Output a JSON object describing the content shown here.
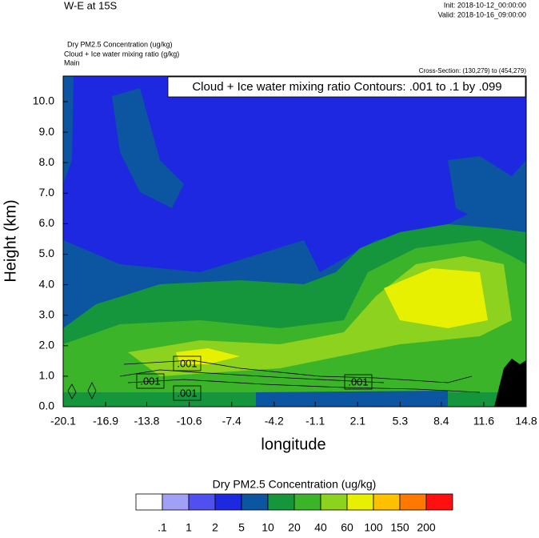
{
  "chart_data": {
    "type": "contour",
    "title": "W-E at 15S",
    "init": "Init: 2018-10-12_00:00:00",
    "valid": "Valid: 2018-10-16_09:00:00",
    "field_labels": [
      "Dry PM2.5 Concentration   (ug/kg)",
      "Cloud + Ice water mixing ratio   (g/kg)",
      "Main"
    ],
    "cross_section": "Cross-Section: (130,279) to (454,279)",
    "contour_info": "Cloud + Ice water mixing ratio Contours: .001 to .1 by .099",
    "contour_labels": [
      ".001",
      ".001",
      ".001",
      ".001"
    ],
    "xlabel": "longitude",
    "ylabel": "Height (km)",
    "xlim": [
      -20.1,
      14.8
    ],
    "xticks": [
      -20.1,
      -16.9,
      -13.8,
      -10.6,
      -7.4,
      -4.2,
      -1.1,
      2.1,
      5.3,
      8.4,
      11.6,
      14.8
    ],
    "ylim": [
      0,
      10.84
    ],
    "yticks": [
      {
        "value": 0,
        "label": "0.0"
      },
      {
        "value": 1,
        "label": "1.0"
      },
      {
        "value": 2,
        "label": "2.0"
      },
      {
        "value": 3,
        "label": "3.0"
      },
      {
        "value": 4,
        "label": "4.0"
      },
      {
        "value": 5,
        "label": "5.0"
      },
      {
        "value": 6,
        "label": "6.0"
      },
      {
        "value": 7,
        "label": "7.0"
      },
      {
        "value": 8,
        "label": "8.0"
      },
      {
        "value": 9,
        "label": "9.0"
      },
      {
        "value": 10,
        "label": "10.0"
      }
    ],
    "colorbar": {
      "title": "Dry PM2.5 Concentration  (ug/kg)",
      "colors": [
        "#ffffff",
        "#a0a0f5",
        "#5050f0",
        "#1e28e0",
        "#0c55a0",
        "#16963c",
        "#3cb42a",
        "#8cd21e",
        "#e6f000",
        "#ffc000",
        "#ff7800",
        "#ff1010"
      ],
      "levels": [
        {
          "value": 0.1,
          "label": ".1"
        },
        1,
        2,
        5,
        10,
        20,
        40,
        60,
        100,
        150,
        200
      ]
    }
  }
}
